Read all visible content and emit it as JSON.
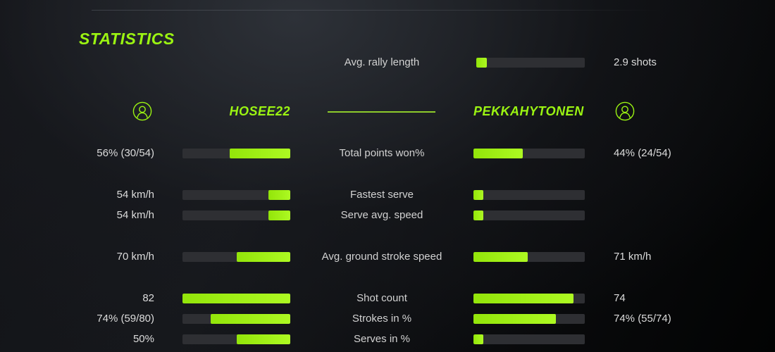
{
  "colors": {
    "accent": "#9bf412",
    "bar_track": "#2e2f33",
    "bar_fill_start": "#93e50a",
    "bar_fill_end": "#adf922",
    "text": "#d8d8d8"
  },
  "title": "STATISTICS",
  "rally": {
    "label": "Avg. rally length",
    "value": "2.9 shots",
    "fill_pct": 10
  },
  "players": {
    "left": {
      "name": "HOSEE22",
      "avatar_icon": "person-circle-icon"
    },
    "right": {
      "name": "PEKKAHYTONEN",
      "avatar_icon": "person-circle-icon"
    }
  },
  "stats": [
    {
      "label": "Total points won%",
      "left_value": "56% (30/54)",
      "left_fill_pct": 56,
      "right_value": "44% (24/54)",
      "right_fill_pct": 44
    },
    {
      "label": "Fastest serve",
      "left_value": "54 km/h",
      "left_fill_pct": 20,
      "right_value": "",
      "right_fill_pct": 9
    },
    {
      "label": "Serve avg. speed",
      "left_value": "54 km/h",
      "left_fill_pct": 20,
      "right_value": "",
      "right_fill_pct": 9
    },
    {
      "label": "Avg. ground stroke speed",
      "left_value": "70 km/h",
      "left_fill_pct": 50,
      "right_value": "71 km/h",
      "right_fill_pct": 49
    },
    {
      "label": "Shot count",
      "left_value": "82",
      "left_fill_pct": 100,
      "right_value": "74",
      "right_fill_pct": 90
    },
    {
      "label": "Strokes in %",
      "left_value": "74% (59/80)",
      "left_fill_pct": 74,
      "right_value": "74% (55/74)",
      "right_fill_pct": 74
    },
    {
      "label": "Serves in %",
      "left_value": "50%",
      "left_fill_pct": 50,
      "right_value": "",
      "right_fill_pct": 9
    }
  ]
}
